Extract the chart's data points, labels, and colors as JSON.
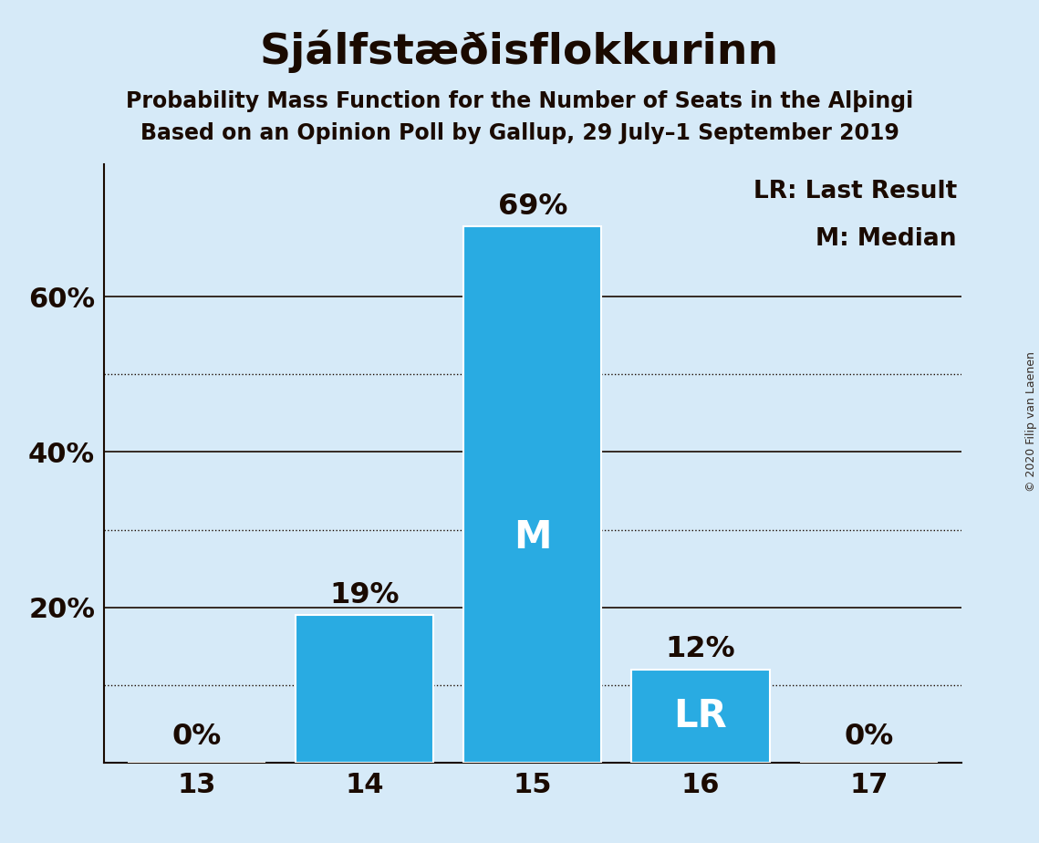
{
  "title": "Sjálfstæðisflokkurinn",
  "subtitle1": "Probability Mass Function for the Number of Seats in the Alþingi",
  "subtitle2": "Based on an Opinion Poll by Gallup, 29 July–1 September 2019",
  "copyright": "© 2020 Filip van Laenen",
  "categories": [
    13,
    14,
    15,
    16,
    17
  ],
  "values": [
    0,
    19,
    69,
    12,
    0
  ],
  "bar_color": "#29ABE2",
  "background_color": "#D6EAF8",
  "text_color": "#1A0A00",
  "white": "#FFFFFF",
  "median_bar": 15,
  "lr_bar": 16,
  "median_label": "M",
  "lr_label": "LR",
  "legend_lr": "LR: Last Result",
  "legend_m": "M: Median",
  "ylim_max": 77,
  "yticks": [
    0,
    20,
    40,
    60
  ],
  "ytick_labels": [
    "",
    "20%",
    "40%",
    "60%"
  ],
  "solid_gridlines": [
    20,
    40,
    60
  ],
  "dotted_gridlines": [
    10,
    30,
    50
  ],
  "title_fontsize": 34,
  "subtitle_fontsize": 17,
  "axis_tick_fontsize": 22,
  "bar_label_fontsize": 23,
  "inside_label_fontsize": 30,
  "legend_fontsize": 19,
  "copyright_fontsize": 9
}
